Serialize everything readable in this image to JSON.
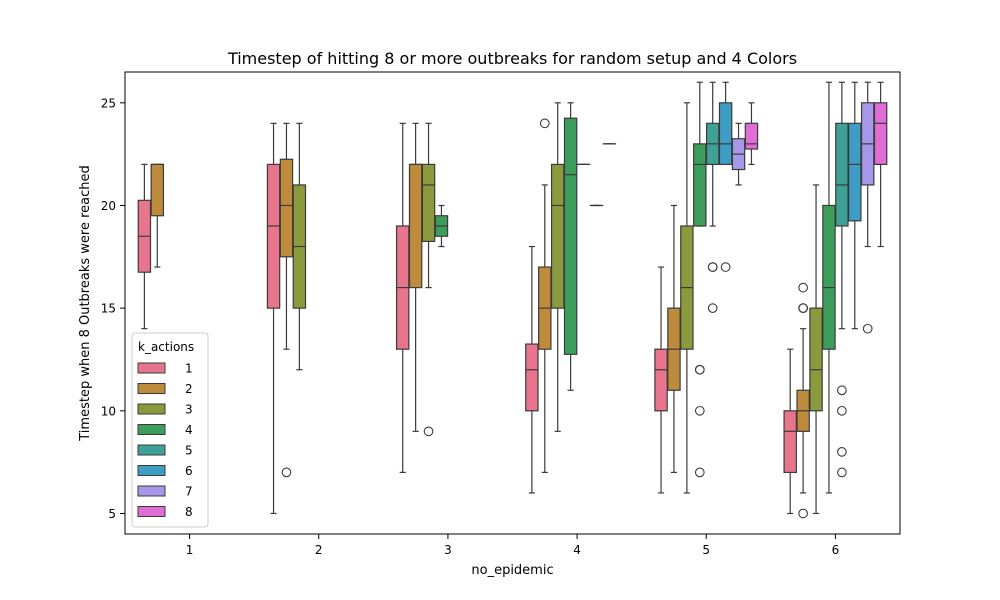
{
  "chart_data": {
    "type": "box",
    "title": "Timestep of hitting 8 or more outbreaks for random setup and 4 Colors",
    "xlabel": "no_epidemic",
    "ylabel": "Timestep when 8 Outbreaks were reached",
    "categories": [
      "1",
      "2",
      "3",
      "4",
      "5",
      "6"
    ],
    "ylim": [
      4.0,
      26.5
    ],
    "yticks": [
      5,
      10,
      15,
      20,
      25
    ],
    "legend": {
      "title": "k_actions",
      "placement": "lower-left",
      "entries": [
        "1",
        "2",
        "3",
        "4",
        "5",
        "6",
        "7",
        "8"
      ]
    },
    "colors": {
      "1": "#e8758c",
      "2": "#be8a3c",
      "3": "#8b9a3c",
      "4": "#3c9e5a",
      "5": "#3fa095",
      "6": "#3d9dc4",
      "7": "#a797e9",
      "8": "#e06cd6"
    },
    "boxes": [
      {
        "category": "1",
        "k": "1",
        "whislo": 14,
        "q1": 16.75,
        "med": 18.5,
        "q3": 20.25,
        "whishi": 22,
        "fliers": []
      },
      {
        "category": "1",
        "k": "2",
        "whislo": 17,
        "q1": 19.5,
        "med": 22,
        "q3": 22,
        "whishi": 22,
        "fliers": []
      },
      {
        "category": "2",
        "k": "1",
        "whislo": 5,
        "q1": 15,
        "med": 19,
        "q3": 22,
        "whishi": 24,
        "fliers": []
      },
      {
        "category": "2",
        "k": "2",
        "whislo": 13,
        "q1": 17.5,
        "med": 20,
        "q3": 22.25,
        "whishi": 24,
        "fliers": [
          7
        ]
      },
      {
        "category": "2",
        "k": "3",
        "whislo": 12,
        "q1": 15,
        "med": 18,
        "q3": 21,
        "whishi": 24,
        "fliers": []
      },
      {
        "category": "3",
        "k": "1",
        "whislo": 7,
        "q1": 13,
        "med": 16,
        "q3": 19,
        "whishi": 24,
        "fliers": []
      },
      {
        "category": "3",
        "k": "2",
        "whislo": 9,
        "q1": 16,
        "med": 22,
        "q3": 22,
        "whishi": 24,
        "fliers": []
      },
      {
        "category": "3",
        "k": "3",
        "whislo": 16,
        "q1": 18.25,
        "med": 21,
        "q3": 22,
        "whishi": 24,
        "fliers": [
          9
        ]
      },
      {
        "category": "3",
        "k": "4",
        "whislo": 18,
        "q1": 18.5,
        "med": 19,
        "q3": 19.5,
        "whishi": 20,
        "fliers": []
      },
      {
        "category": "4",
        "k": "1",
        "whislo": 6,
        "q1": 10,
        "med": 12,
        "q3": 13.25,
        "whishi": 18,
        "fliers": []
      },
      {
        "category": "4",
        "k": "2",
        "whislo": 7,
        "q1": 13,
        "med": 15,
        "q3": 17,
        "whishi": 21,
        "fliers": [
          24
        ]
      },
      {
        "category": "4",
        "k": "3",
        "whislo": 9,
        "q1": 15,
        "med": 20,
        "q3": 22,
        "whishi": 25,
        "fliers": []
      },
      {
        "category": "4",
        "k": "4",
        "whislo": 11,
        "q1": 12.75,
        "med": 21.5,
        "q3": 24.25,
        "whishi": 25,
        "fliers": []
      },
      {
        "category": "4",
        "k": "5",
        "whislo": 22,
        "q1": 22,
        "med": 22,
        "q3": 22,
        "whishi": 22,
        "fliers": []
      },
      {
        "category": "4",
        "k": "6",
        "whislo": 20,
        "q1": 20,
        "med": 20,
        "q3": 20,
        "whishi": 20,
        "fliers": []
      },
      {
        "category": "4",
        "k": "7",
        "whislo": 23,
        "q1": 23,
        "med": 23,
        "q3": 23,
        "whishi": 23,
        "fliers": []
      },
      {
        "category": "5",
        "k": "1",
        "whislo": 6,
        "q1": 10,
        "med": 12,
        "q3": 13,
        "whishi": 17,
        "fliers": []
      },
      {
        "category": "5",
        "k": "2",
        "whislo": 7,
        "q1": 11,
        "med": 13,
        "q3": 15,
        "whishi": 20,
        "fliers": []
      },
      {
        "category": "5",
        "k": "3",
        "whislo": 6,
        "q1": 13,
        "med": 16,
        "q3": 19,
        "whishi": 25,
        "fliers": []
      },
      {
        "category": "5",
        "k": "4",
        "whislo": 19,
        "q1": 19,
        "med": 22,
        "q3": 23,
        "whishi": 26,
        "fliers": [
          12,
          12,
          10,
          7
        ]
      },
      {
        "category": "5",
        "k": "5",
        "whislo": 19,
        "q1": 22,
        "med": 23,
        "q3": 24,
        "whishi": 26,
        "fliers": [
          17,
          17,
          15
        ]
      },
      {
        "category": "5",
        "k": "6",
        "whislo": 22,
        "q1": 22,
        "med": 23,
        "q3": 25,
        "whishi": 26,
        "fliers": [
          17
        ]
      },
      {
        "category": "5",
        "k": "7",
        "whislo": 21,
        "q1": 21.75,
        "med": 22.5,
        "q3": 23.25,
        "whishi": 24,
        "fliers": []
      },
      {
        "category": "5",
        "k": "8",
        "whislo": 22,
        "q1": 22.75,
        "med": 23,
        "q3": 24,
        "whishi": 25,
        "fliers": []
      },
      {
        "category": "6",
        "k": "1",
        "whislo": 5,
        "q1": 7,
        "med": 9,
        "q3": 10,
        "whishi": 13,
        "fliers": []
      },
      {
        "category": "6",
        "k": "2",
        "whislo": 6,
        "q1": 9,
        "med": 10,
        "q3": 11,
        "whishi": 14,
        "fliers": [
          16,
          15,
          15,
          5
        ]
      },
      {
        "category": "6",
        "k": "3",
        "whislo": 5,
        "q1": 10,
        "med": 12,
        "q3": 15,
        "whishi": 21,
        "fliers": []
      },
      {
        "category": "6",
        "k": "4",
        "whislo": 6,
        "q1": 13,
        "med": 16,
        "q3": 20,
        "whishi": 26,
        "fliers": []
      },
      {
        "category": "6",
        "k": "5",
        "whislo": 14,
        "q1": 19,
        "med": 21,
        "q3": 24,
        "whishi": 26,
        "fliers": [
          11,
          10,
          8,
          7
        ]
      },
      {
        "category": "6",
        "k": "6",
        "whislo": 14,
        "q1": 19.25,
        "med": 22,
        "q3": 24,
        "whishi": 26,
        "fliers": []
      },
      {
        "category": "6",
        "k": "7",
        "whislo": 18,
        "q1": 21,
        "med": 23,
        "q3": 25,
        "whishi": 26,
        "fliers": [
          14
        ]
      },
      {
        "category": "6",
        "k": "8",
        "whislo": 18,
        "q1": 22,
        "med": 24,
        "q3": 25,
        "whishi": 26,
        "fliers": []
      }
    ]
  }
}
